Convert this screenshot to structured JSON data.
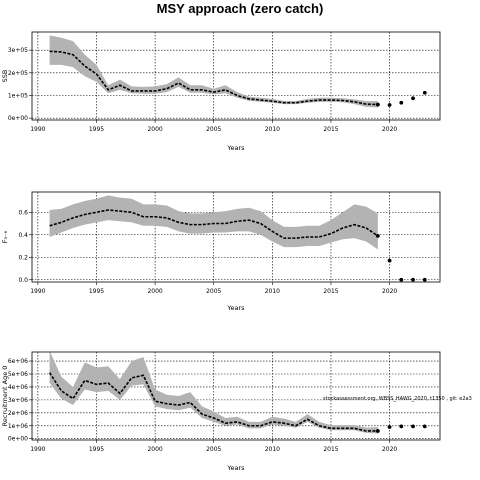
{
  "title": "MSY approach (zero catch)",
  "colors": {
    "band": "#b3b3b3",
    "line": "#000000",
    "points": "#000000",
    "grid": "#000000"
  },
  "chart_data": [
    {
      "type": "line",
      "ylabel": "SSB",
      "xlabel": "Years",
      "xlim": [
        1989.5,
        2024.3
      ],
      "ylim": [
        -8000,
        380000
      ],
      "xticks": [
        1990,
        1995,
        2000,
        2005,
        2010,
        2015,
        2020
      ],
      "yticks": [
        0,
        100000,
        200000,
        300000
      ],
      "ytick_labels": [
        "0e+00",
        "1e+05",
        "2e+05",
        "3e+05"
      ],
      "grid": true,
      "note": "",
      "series": [
        {
          "x": [
            1991,
            1992,
            1993,
            1994,
            1995,
            1996,
            1997,
            1998,
            1999,
            2000,
            2001,
            2002,
            2003,
            2004,
            2005,
            2006,
            2007,
            2008,
            2009,
            2010,
            2011,
            2012,
            2013,
            2014,
            2015,
            2016,
            2017,
            2018,
            2019
          ],
          "y": [
            295000,
            292000,
            280000,
            230000,
            195000,
            125000,
            145000,
            120000,
            120000,
            120000,
            130000,
            155000,
            125000,
            125000,
            115000,
            125000,
            100000,
            85000,
            80000,
            75000,
            68000,
            68000,
            75000,
            80000,
            80000,
            78000,
            72000,
            62000,
            60000
          ],
          "lower": [
            235000,
            235000,
            225000,
            185000,
            160000,
            110000,
            125000,
            110000,
            108000,
            108000,
            115000,
            138000,
            112000,
            112000,
            105000,
            110000,
            90000,
            77000,
            72000,
            68000,
            62000,
            62000,
            68000,
            72000,
            72000,
            70000,
            62000,
            50000,
            47000
          ],
          "upper": [
            365000,
            355000,
            340000,
            280000,
            235000,
            145000,
            170000,
            140000,
            138000,
            140000,
            150000,
            180000,
            145000,
            145000,
            130000,
            145000,
            115000,
            95000,
            90000,
            85000,
            76000,
            76000,
            85000,
            90000,
            90000,
            88000,
            83000,
            75000,
            75000
          ]
        }
      ],
      "projection": {
        "x": [
          2020,
          2021,
          2022,
          2023
        ],
        "y": [
          58000,
          68000,
          88000,
          112000
        ]
      }
    },
    {
      "type": "line",
      "ylabel": "F₃₋₆",
      "xlabel": "Years",
      "xlim": [
        1989.5,
        2024.3
      ],
      "ylim": [
        -0.02,
        0.78
      ],
      "xticks": [
        1990,
        1995,
        2000,
        2005,
        2010,
        2015,
        2020
      ],
      "yticks": [
        0,
        0.2,
        0.4,
        0.6
      ],
      "ytick_labels": [
        "0.0",
        "0.2",
        "0.4",
        "0.6"
      ],
      "grid": true,
      "note": "",
      "series": [
        {
          "x": [
            1991,
            1992,
            1993,
            1994,
            1995,
            1996,
            1997,
            1998,
            1999,
            2000,
            2001,
            2002,
            2003,
            2004,
            2005,
            2006,
            2007,
            2008,
            2009,
            2010,
            2011,
            2012,
            2013,
            2014,
            2015,
            2016,
            2017,
            2018,
            2019
          ],
          "y": [
            0.48,
            0.51,
            0.55,
            0.58,
            0.6,
            0.62,
            0.61,
            0.6,
            0.56,
            0.56,
            0.55,
            0.51,
            0.49,
            0.49,
            0.5,
            0.5,
            0.52,
            0.53,
            0.5,
            0.43,
            0.37,
            0.37,
            0.38,
            0.38,
            0.41,
            0.46,
            0.49,
            0.46,
            0.39
          ],
          "lower": [
            0.38,
            0.42,
            0.46,
            0.49,
            0.51,
            0.53,
            0.52,
            0.51,
            0.48,
            0.48,
            0.47,
            0.43,
            0.41,
            0.41,
            0.42,
            0.42,
            0.43,
            0.43,
            0.4,
            0.34,
            0.29,
            0.29,
            0.3,
            0.3,
            0.33,
            0.36,
            0.37,
            0.34,
            0.27
          ],
          "upper": [
            0.62,
            0.63,
            0.67,
            0.7,
            0.72,
            0.75,
            0.73,
            0.72,
            0.67,
            0.67,
            0.66,
            0.61,
            0.59,
            0.59,
            0.6,
            0.61,
            0.63,
            0.64,
            0.61,
            0.53,
            0.47,
            0.47,
            0.48,
            0.48,
            0.53,
            0.6,
            0.67,
            0.65,
            0.59
          ]
        }
      ],
      "projection": {
        "x": [
          2020,
          2021,
          2022,
          2023
        ],
        "y": [
          0.17,
          0,
          0,
          0
        ]
      }
    },
    {
      "type": "line",
      "ylabel": "Recruitment Age 0",
      "xlabel": "Years",
      "xlim": [
        1989.5,
        2024.3
      ],
      "ylim": [
        -100000,
        6700000
      ],
      "xticks": [
        1990,
        1995,
        2000,
        2005,
        2010,
        2015,
        2020
      ],
      "yticks": [
        0,
        1000000,
        2000000,
        3000000,
        4000000,
        5000000,
        6000000
      ],
      "ytick_labels": [
        "0e+00",
        "1e+06",
        "2e+06",
        "3e+06",
        "4e+06",
        "5e+06",
        "6e+06"
      ],
      "grid": true,
      "note": "stockassessment.org, WBSS_HAWG_2020, t1350 , git: e2a3",
      "series": [
        {
          "x": [
            1991,
            1992,
            1993,
            1994,
            1995,
            1996,
            1997,
            1998,
            1999,
            2000,
            2001,
            2002,
            2003,
            2004,
            2005,
            2006,
            2007,
            2008,
            2009,
            2010,
            2011,
            2012,
            2013,
            2014,
            2015,
            2016,
            2017,
            2018,
            2019
          ],
          "y": [
            5100000,
            3700000,
            3100000,
            4500000,
            4200000,
            4300000,
            3500000,
            4700000,
            4900000,
            2900000,
            2700000,
            2600000,
            2800000,
            1900000,
            1600000,
            1200000,
            1300000,
            1000000,
            1000000,
            1300000,
            1200000,
            1000000,
            1500000,
            1000000,
            800000,
            800000,
            800000,
            600000,
            600000
          ],
          "lower": [
            4300000,
            3100000,
            2600000,
            3800000,
            3600000,
            3700000,
            3000000,
            4100000,
            4200000,
            2500000,
            2300000,
            2200000,
            2400000,
            1600000,
            1300000,
            1000000,
            1100000,
            800000,
            800000,
            1100000,
            1000000,
            850000,
            1300000,
            850000,
            650000,
            650000,
            650000,
            450000,
            400000
          ],
          "upper": [
            6800000,
            4800000,
            4000000,
            5900000,
            5500000,
            5600000,
            4600000,
            6000000,
            6300000,
            3800000,
            3400000,
            3300000,
            3600000,
            2500000,
            2100000,
            1600000,
            1700000,
            1300000,
            1300000,
            1700000,
            1550000,
            1300000,
            1900000,
            1300000,
            1050000,
            1050000,
            1050000,
            850000,
            900000
          ]
        }
      ],
      "projection": {
        "x": [
          2020,
          2021,
          2022,
          2023
        ],
        "y": [
          900000,
          950000,
          950000,
          950000
        ]
      }
    }
  ]
}
